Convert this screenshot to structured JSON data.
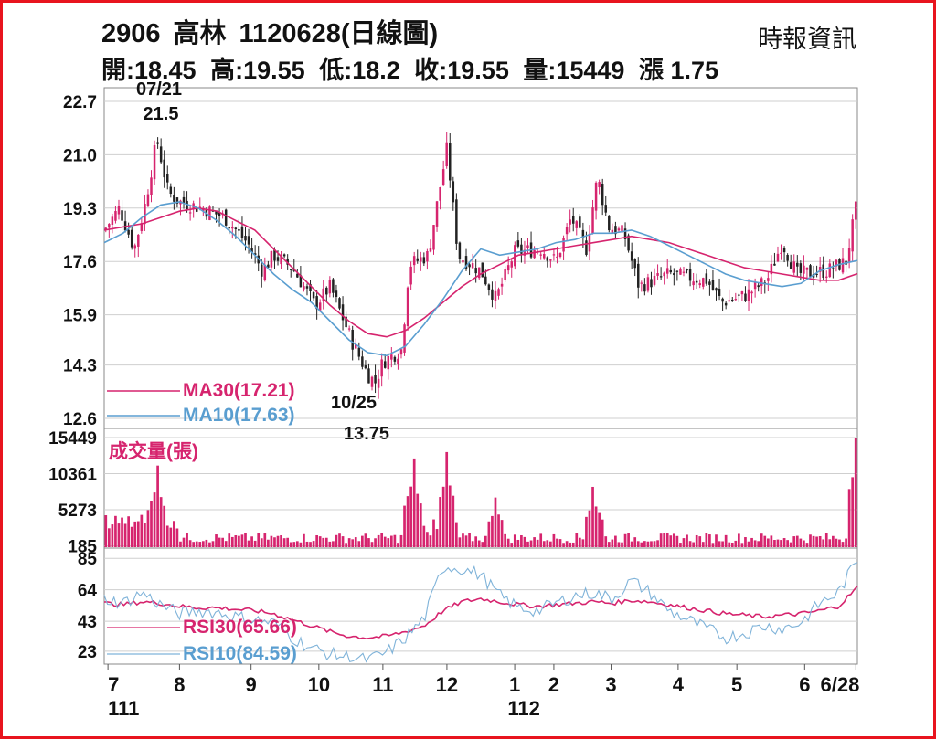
{
  "header": {
    "code": "2906",
    "name": "高林",
    "chart_label": "1120628(日線圖)",
    "source": "時報資訊",
    "ohlc": [
      {
        "label": "開",
        "value": "18.45"
      },
      {
        "label": "高",
        "value": "19.55"
      },
      {
        "label": "低",
        "value": "18.2"
      },
      {
        "label": "收",
        "value": "19.55"
      },
      {
        "label": "量",
        "value": "15449"
      },
      {
        "label": "漲",
        "value": "1.75"
      }
    ]
  },
  "colors": {
    "up": "#d6246e",
    "down": "#222222",
    "ma30": "#d6246e",
    "ma10": "#5a9ed0",
    "volume": "#d6246e",
    "rsi30": "#d6246e",
    "rsi10": "#7fb3d9",
    "grid": "#cfcfcf"
  },
  "chart_data": [
    {
      "type": "candlestick",
      "title": "",
      "y_ticks": [
        "22.7",
        "21.0",
        "19.3",
        "17.6",
        "15.9",
        "14.3",
        "12.6"
      ],
      "ylim": [
        12.6,
        22.7
      ],
      "grid": true,
      "legend": [
        "MA30(17.21)",
        "MA10(17.63)"
      ],
      "annotations": [
        {
          "date": "07/21",
          "value": "21.5",
          "type": "high"
        },
        {
          "date": "10/25",
          "value": "13.75",
          "type": "low"
        }
      ],
      "series": [
        {
          "name": "MA30(17.21)",
          "values": [
            18.6,
            18.7,
            18.8,
            19.0,
            19.2,
            19.3,
            19.2,
            18.9,
            18.6,
            18.0,
            17.4,
            16.8,
            16.2,
            15.7,
            15.3,
            15.2,
            15.4,
            15.8,
            16.3,
            16.8,
            17.2,
            17.5,
            17.8,
            17.9,
            18.0,
            18.1,
            18.2,
            18.3,
            18.4,
            18.3,
            18.2,
            18.0,
            17.8,
            17.6,
            17.4,
            17.3,
            17.2,
            17.1,
            17.0,
            17.0,
            17.21
          ]
        },
        {
          "name": "MA10(17.63)",
          "values": [
            18.2,
            18.5,
            19.0,
            19.4,
            19.5,
            19.3,
            18.9,
            18.4,
            17.8,
            17.2,
            16.7,
            16.3,
            15.7,
            15.1,
            14.7,
            14.6,
            14.9,
            15.6,
            16.4,
            17.3,
            18.0,
            17.8,
            17.9,
            18.0,
            18.2,
            18.3,
            18.5,
            18.5,
            18.6,
            18.4,
            18.1,
            17.8,
            17.5,
            17.2,
            17.0,
            16.9,
            16.8,
            16.9,
            17.3,
            17.5,
            17.63
          ]
        }
      ]
    },
    {
      "type": "bar",
      "title": "成交量(張)",
      "y_ticks": [
        "15449",
        "10361",
        "5273",
        "185"
      ],
      "ylim": [
        0,
        15449
      ],
      "grid": true,
      "spikes": [
        {
          "position": 0.07,
          "value": 11500
        },
        {
          "position": 0.41,
          "value": 12500
        },
        {
          "position": 0.455,
          "value": 13400
        },
        {
          "position": 0.52,
          "value": 7000
        },
        {
          "position": 0.65,
          "value": 8500
        },
        {
          "position": 0.998,
          "value": 15449
        }
      ]
    },
    {
      "type": "line",
      "title": "",
      "y_ticks": [
        "85",
        "64",
        "43",
        "23"
      ],
      "ylim": [
        15,
        90
      ],
      "grid": true,
      "legend": [
        "RSI30(65.66)",
        "RSI10(84.59)"
      ],
      "series": [
        {
          "name": "RSI30(65.66)",
          "values": [
            55,
            54,
            56,
            55,
            53,
            52,
            52,
            51,
            50,
            48,
            44,
            40,
            36,
            33,
            32,
            33,
            36,
            40,
            50,
            56,
            58,
            56,
            54,
            53,
            54,
            55,
            56,
            55,
            57,
            56,
            54,
            52,
            50,
            48,
            47,
            46,
            47,
            48,
            50,
            53,
            65.66
          ]
        },
        {
          "name": "RSI10(84.59)",
          "values": [
            58,
            55,
            62,
            54,
            48,
            50,
            49,
            46,
            44,
            42,
            32,
            25,
            21,
            19,
            17,
            22,
            32,
            45,
            80,
            78,
            74,
            60,
            52,
            50,
            55,
            60,
            62,
            58,
            70,
            62,
            50,
            44,
            38,
            32,
            35,
            40,
            38,
            42,
            55,
            62,
            84.59
          ]
        }
      ]
    }
  ],
  "x_axis": {
    "ticks": [
      {
        "label": "7",
        "pos": 0.005
      },
      {
        "label": "8",
        "pos": 0.1
      },
      {
        "label": "9",
        "pos": 0.195
      },
      {
        "label": "10",
        "pos": 0.285
      },
      {
        "label": "11",
        "pos": 0.37
      },
      {
        "label": "12",
        "pos": 0.455
      },
      {
        "label": "1",
        "pos": 0.545
      },
      {
        "label": "2",
        "pos": 0.597
      },
      {
        "label": "3",
        "pos": 0.673
      },
      {
        "label": "4",
        "pos": 0.762
      },
      {
        "label": "5",
        "pos": 0.84
      },
      {
        "label": "6",
        "pos": 0.93
      },
      {
        "label": "6/28",
        "pos": 0.998
      }
    ],
    "year_labels": [
      {
        "label": "111",
        "pos": 0.005
      },
      {
        "label": "112",
        "pos": 0.545
      }
    ]
  }
}
